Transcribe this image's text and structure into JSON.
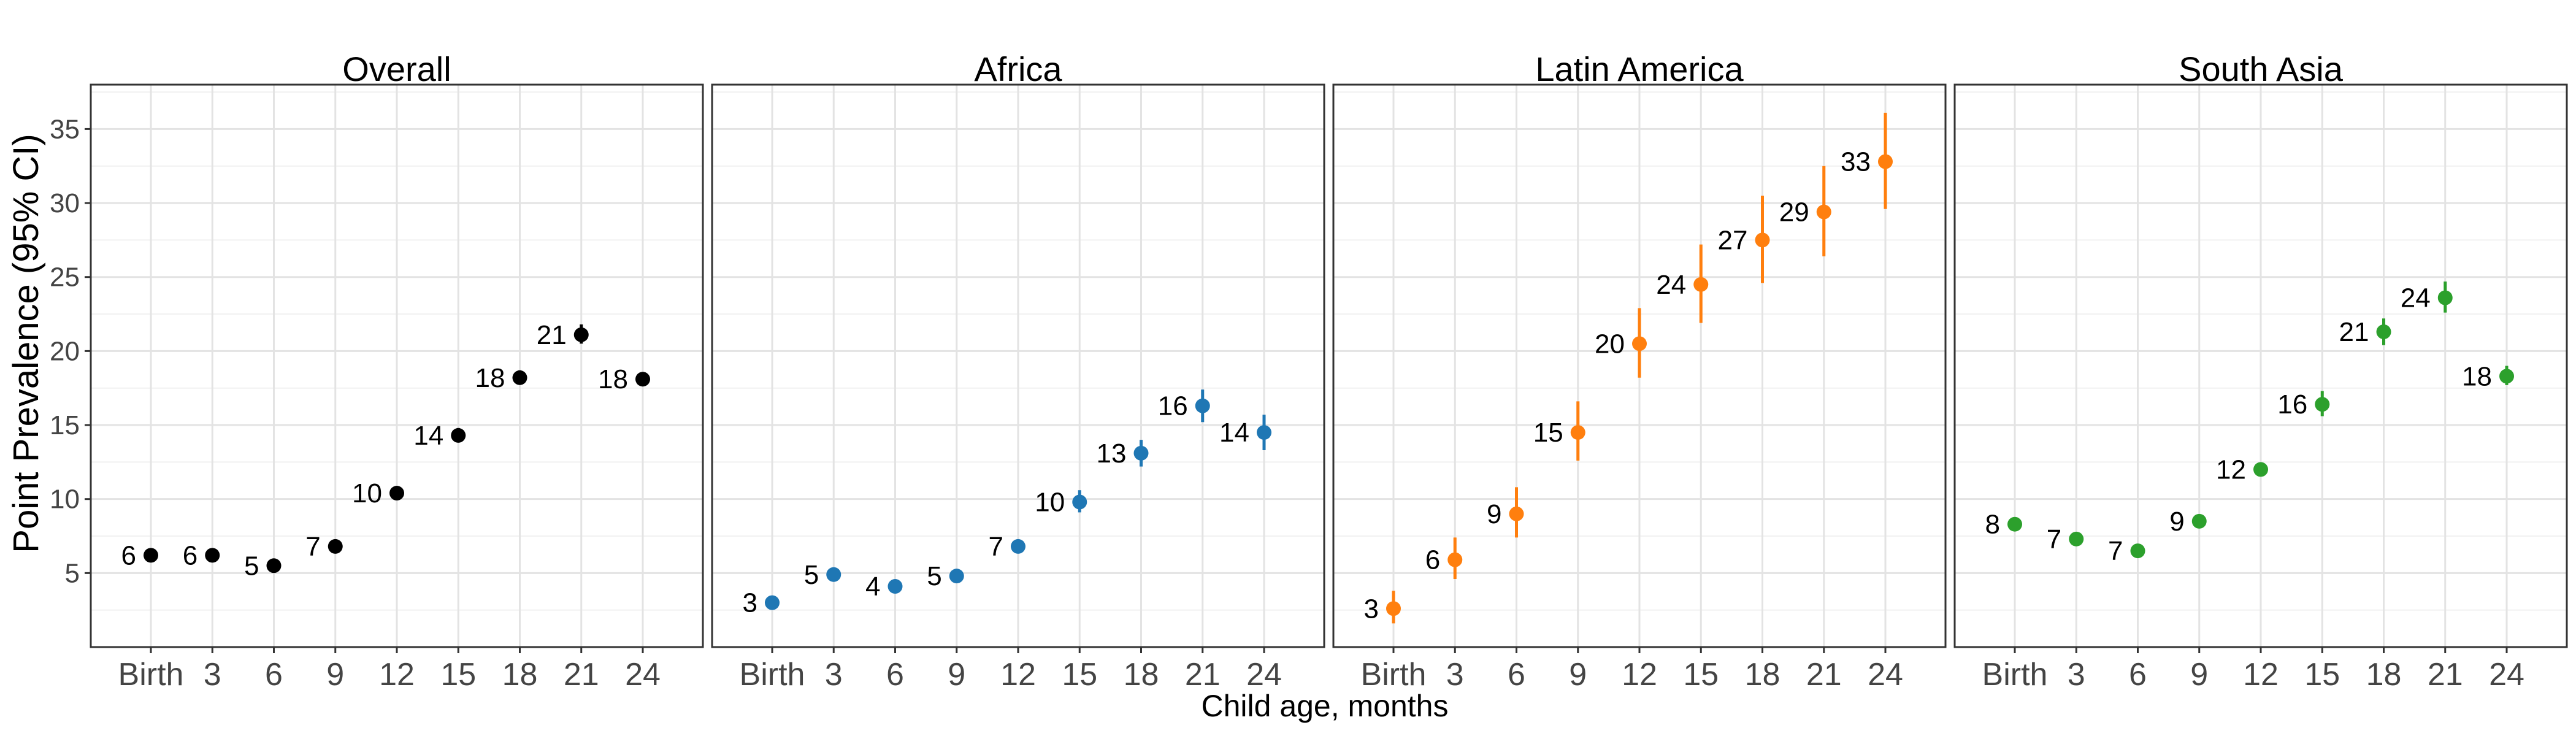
{
  "chart_data": {
    "type": "scatter",
    "subtype": "point-range",
    "ylabel": "Point Prevalence (95% CI)",
    "xlabel": "Child age, months",
    "ylim": [
      0,
      38
    ],
    "yticks": [
      5,
      10,
      15,
      20,
      25,
      30,
      35
    ],
    "categories": [
      "Birth",
      "3",
      "6",
      "9",
      "12",
      "15",
      "18",
      "21",
      "24"
    ],
    "grid": true,
    "facets": [
      {
        "title": "Overall",
        "color": "#000000",
        "values": [
          6.2,
          6.2,
          5.5,
          6.8,
          10.4,
          14.3,
          18.2,
          21.1,
          18.1
        ],
        "ci": [
          [
            5.9,
            6.5
          ],
          [
            5.9,
            6.5
          ],
          [
            5.2,
            5.8
          ],
          [
            6.5,
            7.1
          ],
          [
            10.1,
            10.7
          ],
          [
            13.9,
            14.8
          ],
          [
            17.8,
            18.7
          ],
          [
            20.5,
            21.8
          ],
          [
            17.7,
            18.5
          ]
        ],
        "labels": [
          "6",
          "6",
          "5",
          "7",
          "10",
          "14",
          "18",
          "21",
          "18"
        ]
      },
      {
        "title": "Africa",
        "color": "#1f77b4",
        "values": [
          3.0,
          4.9,
          4.1,
          4.8,
          6.8,
          9.8,
          13.1,
          16.3,
          14.5
        ],
        "ci": [
          [
            2.7,
            3.3
          ],
          [
            4.5,
            5.3
          ],
          [
            3.7,
            4.5
          ],
          [
            4.4,
            5.2
          ],
          [
            6.4,
            7.2
          ],
          [
            9.1,
            10.6
          ],
          [
            12.2,
            14.0
          ],
          [
            15.2,
            17.4
          ],
          [
            13.3,
            15.7
          ]
        ],
        "labels": [
          "3",
          "5",
          "4",
          "5",
          "7",
          "10",
          "13",
          "16",
          "14"
        ]
      },
      {
        "title": "Latin America",
        "color": "#ff7f0e",
        "values": [
          2.6,
          5.9,
          9.0,
          14.5,
          20.5,
          24.5,
          27.5,
          29.4,
          32.8
        ],
        "ci": [
          [
            1.6,
            3.8
          ],
          [
            4.6,
            7.4
          ],
          [
            7.4,
            10.8
          ],
          [
            12.6,
            16.6
          ],
          [
            18.2,
            22.9
          ],
          [
            21.9,
            27.2
          ],
          [
            24.6,
            30.5
          ],
          [
            26.4,
            32.5
          ],
          [
            29.6,
            36.1
          ]
        ],
        "labels": [
          "3",
          "6",
          "9",
          "15",
          "20",
          "24",
          "27",
          "29",
          "33"
        ]
      },
      {
        "title": "South Asia",
        "color": "#2ca02c",
        "values": [
          8.3,
          7.3,
          6.5,
          8.5,
          12.0,
          16.4,
          21.3,
          23.6,
          18.3
        ],
        "ci": [
          [
            7.9,
            8.7
          ],
          [
            6.9,
            7.7
          ],
          [
            6.1,
            6.9
          ],
          [
            8.1,
            8.9
          ],
          [
            11.6,
            12.4
          ],
          [
            15.6,
            17.3
          ],
          [
            20.4,
            22.2
          ],
          [
            22.6,
            24.7
          ],
          [
            17.7,
            19.0
          ]
        ],
        "labels": [
          "8",
          "7",
          "7",
          "9",
          "12",
          "16",
          "21",
          "24",
          "18"
        ]
      }
    ]
  }
}
